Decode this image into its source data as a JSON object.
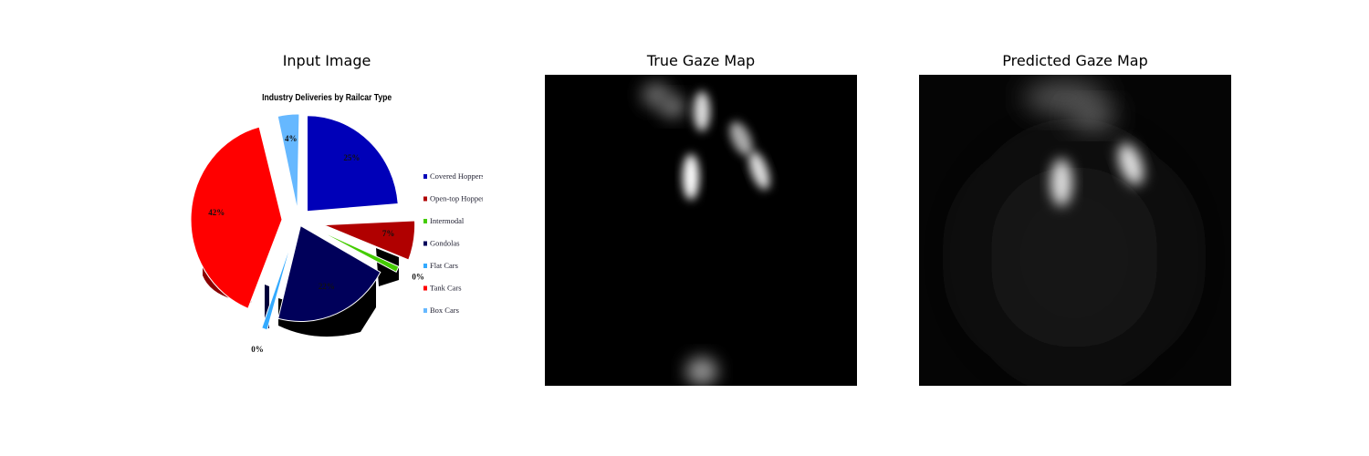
{
  "figure": {
    "panels": [
      {
        "title": "Input Image"
      },
      {
        "title": "True Gaze Map"
      },
      {
        "title": "Predicted Gaze Map"
      }
    ]
  },
  "chart_data": {
    "type": "pie",
    "title": "Industry Deliveries by Railcar Type",
    "exploded": true,
    "style": "3d",
    "legend_position": "right",
    "slices": [
      {
        "label": "Covered Hoppers",
        "value": 25,
        "data_label": "25%",
        "color": "#0000b8"
      },
      {
        "label": "Open-top Hoppers",
        "value": 7,
        "data_label": "7%",
        "color": "#b00000"
      },
      {
        "label": "Intermodal",
        "value": 0,
        "data_label": "0%",
        "color": "#44cc00"
      },
      {
        "label": "Gondolas",
        "value": 22,
        "data_label": "22%",
        "color": "#00005a"
      },
      {
        "label": "Flat Cars",
        "value": 0,
        "data_label": "0%",
        "color": "#33aaff"
      },
      {
        "label": "Tank Cars",
        "value": 42,
        "data_label": "42%",
        "color": "#ff0000"
      },
      {
        "label": "Box Cars",
        "value": 4,
        "data_label": "4%",
        "color": "#66b8ff"
      }
    ]
  }
}
